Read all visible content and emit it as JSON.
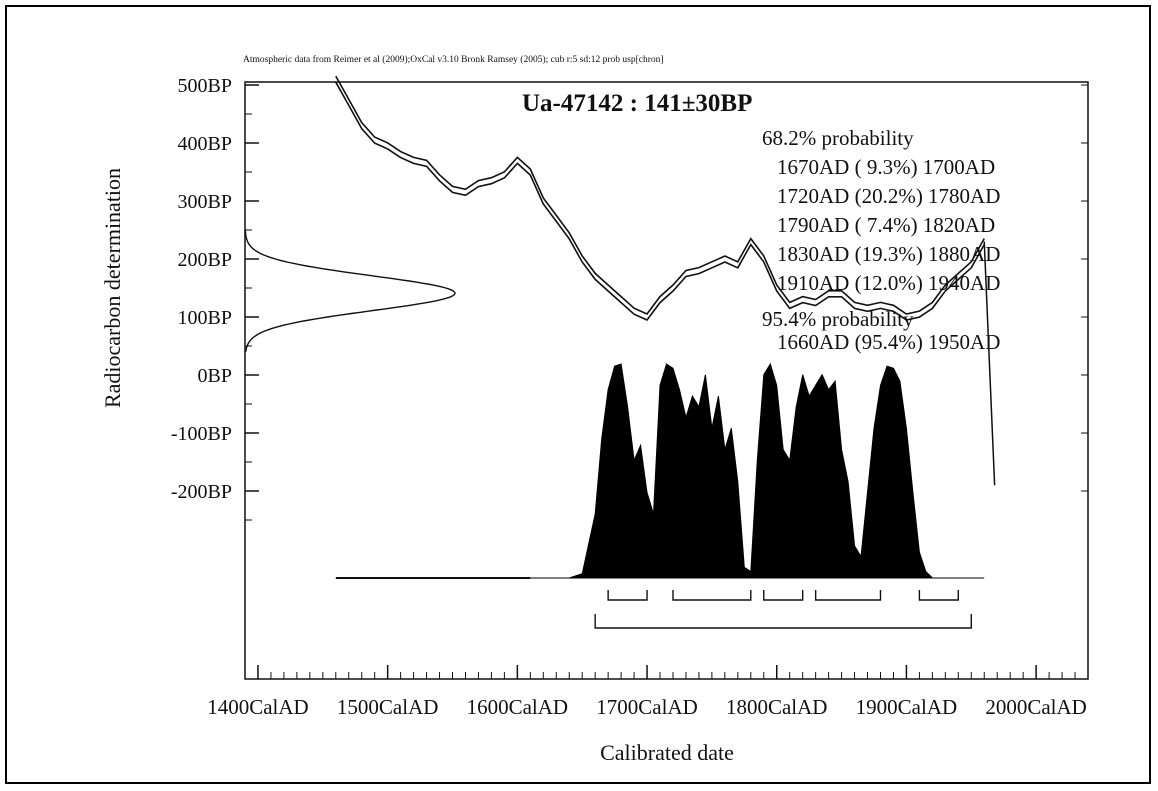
{
  "chart_data": {
    "type": "area",
    "credit": "Atmospheric data from Reimer et al (2009);OxCal v3.10 Bronk Ramsey (2005); cub r:5 sd:12 prob usp[chron]",
    "title": "Ua-47142 : 141±30BP",
    "xlabel": "Calibrated date",
    "ylabel": "Radiocarbon determination",
    "x_ticks": [
      "1400CalAD",
      "1500CalAD",
      "1600CalAD",
      "1700CalAD",
      "1800CalAD",
      "1900CalAD",
      "2000CalAD"
    ],
    "y_ticks": [
      "500BP",
      "400BP",
      "300BP",
      "200BP",
      "100BP",
      "0BP",
      "-100BP",
      "-200BP"
    ],
    "xlim": [
      1390,
      2040
    ],
    "ylim": [
      -250,
      500
    ],
    "sample": {
      "mean_bp": 141,
      "sd_bp": 30
    },
    "calibration_curve": {
      "x": [
        1460,
        1470,
        1480,
        1490,
        1500,
        1510,
        1520,
        1530,
        1540,
        1550,
        1560,
        1570,
        1580,
        1590,
        1600,
        1610,
        1620,
        1630,
        1640,
        1650,
        1660,
        1670,
        1680,
        1690,
        1700,
        1710,
        1720,
        1730,
        1740,
        1750,
        1760,
        1770,
        1780,
        1790,
        1800,
        1810,
        1820,
        1830,
        1840,
        1850,
        1860,
        1870,
        1880,
        1890,
        1900,
        1910,
        1920,
        1930,
        1940,
        1950,
        1960
      ],
      "y": [
        510,
        470,
        430,
        405,
        395,
        380,
        370,
        365,
        340,
        320,
        315,
        330,
        335,
        345,
        370,
        350,
        300,
        270,
        240,
        200,
        170,
        150,
        130,
        110,
        100,
        130,
        150,
        175,
        180,
        190,
        200,
        190,
        230,
        200,
        150,
        120,
        130,
        125,
        140,
        140,
        120,
        115,
        120,
        115,
        100,
        105,
        120,
        150,
        170,
        190,
        230
      ]
    },
    "calibrated_probability": {
      "x": [
        1610,
        1620,
        1630,
        1640,
        1650,
        1660,
        1665,
        1670,
        1675,
        1680,
        1685,
        1690,
        1695,
        1700,
        1705,
        1710,
        1715,
        1720,
        1725,
        1730,
        1735,
        1740,
        1745,
        1750,
        1755,
        1760,
        1765,
        1770,
        1775,
        1780,
        1785,
        1790,
        1795,
        1800,
        1805,
        1810,
        1815,
        1820,
        1825,
        1830,
        1835,
        1840,
        1845,
        1850,
        1855,
        1860,
        1865,
        1870,
        1875,
        1880,
        1885,
        1890,
        1895,
        1900,
        1905,
        1910,
        1915,
        1920,
        1925,
        1930,
        1935,
        1940,
        1945,
        1950,
        1960
      ],
      "y": [
        0,
        0,
        0,
        0,
        2,
        30,
        65,
        88,
        99,
        100,
        80,
        55,
        62,
        40,
        30,
        90,
        100,
        98,
        88,
        75,
        85,
        80,
        95,
        70,
        85,
        60,
        70,
        45,
        5,
        3,
        55,
        95,
        100,
        90,
        60,
        55,
        80,
        95,
        85,
        90,
        95,
        88,
        92,
        60,
        45,
        15,
        10,
        40,
        70,
        90,
        99,
        98,
        92,
        70,
        40,
        12,
        3,
        0,
        0,
        0,
        0,
        0,
        0,
        0,
        0
      ],
      "baseline_from": 1460
    },
    "ranges_68_2": [
      [
        1670,
        1700
      ],
      [
        1720,
        1780
      ],
      [
        1790,
        1820
      ],
      [
        1830,
        1880
      ],
      [
        1910,
        1940
      ]
    ],
    "range_95_4": [
      1660,
      1950
    ],
    "probability_text": {
      "heading_68": "68.2% probability",
      "lines_68": [
        "1670AD ( 9.3%) 1700AD",
        "1720AD (20.2%) 1780AD",
        "1790AD ( 7.4%) 1820AD",
        "1830AD (19.3%) 1880AD",
        "1910AD (12.0%) 1940AD"
      ],
      "heading_95": "95.4% probability",
      "lines_95": [
        "1660AD (95.4%) 1950AD"
      ]
    },
    "grid": false
  }
}
